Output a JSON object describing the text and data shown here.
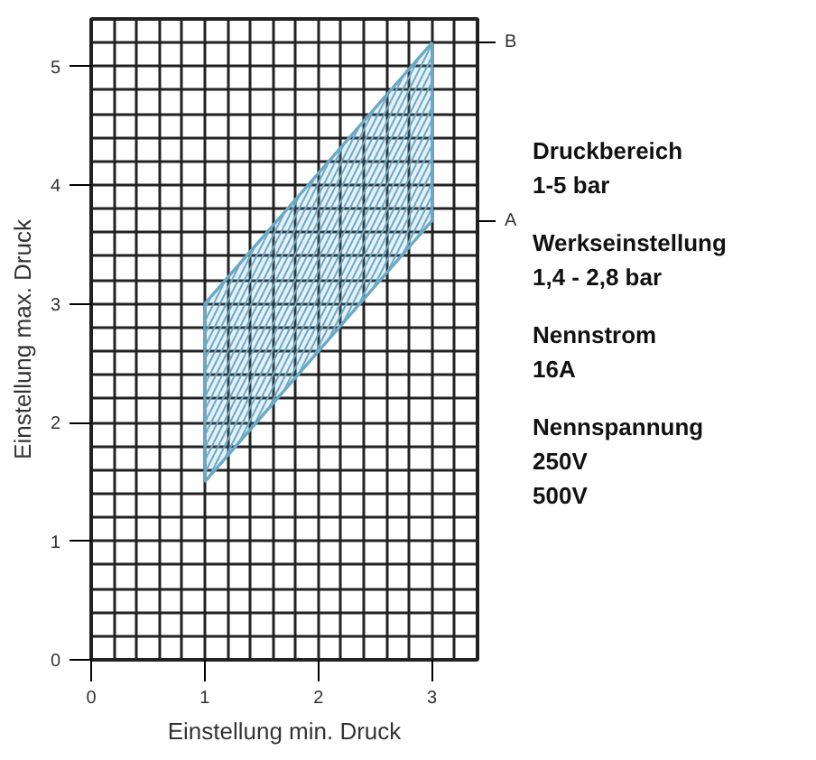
{
  "chart_data": {
    "type": "line",
    "xlabel": "Einstellung min. Druck",
    "ylabel": "Einstellung max. Druck",
    "x": [
      1,
      3
    ],
    "series": [
      {
        "name": "B",
        "color": "#6aaac8",
        "values": [
          3.0,
          5.2
        ],
        "lower": [
          1.5,
          3.7
        ],
        "upper": [
          3.0,
          5.2
        ]
      },
      {
        "name": "A",
        "color": "#6aaac8",
        "values": [
          1.5,
          3.7
        ]
      }
    ],
    "xlim": [
      0,
      3.4
    ],
    "ylim": [
      0,
      5.4
    ],
    "xticks": [
      0,
      {
        "value": 0.2,
        "label": null
      },
      {
        "value": 0.4,
        "label": null
      },
      {
        "value": 0.6,
        "label": null
      },
      {
        "value": 0.8,
        "label": null
      },
      1,
      {
        "value": 1.2,
        "label": null
      },
      {
        "value": 1.4,
        "label": null
      },
      {
        "value": 1.6,
        "label": null
      },
      {
        "value": 1.8,
        "label": null
      },
      2,
      {
        "value": 2.2,
        "label": null
      },
      {
        "value": 2.4,
        "label": null
      },
      {
        "value": 2.6,
        "label": null
      },
      {
        "value": 2.8,
        "label": null
      },
      3,
      {
        "value": 3.2,
        "label": null
      }
    ],
    "yticks": [
      0,
      {
        "value": 0.2,
        "label": null
      },
      {
        "value": 0.4,
        "label": null
      },
      {
        "value": 0.6,
        "label": null
      },
      {
        "value": 0.8,
        "label": null
      },
      1,
      {
        "value": 1.2,
        "label": null
      },
      {
        "value": 1.4,
        "label": null
      },
      {
        "value": 1.6,
        "label": null
      },
      {
        "value": 1.8,
        "label": null
      },
      2,
      {
        "value": 2.2,
        "label": null
      },
      {
        "value": 2.4,
        "label": null
      },
      {
        "value": 2.6,
        "label": null
      },
      {
        "value": 2.8,
        "label": null
      },
      3,
      {
        "value": 3.2,
        "label": null
      },
      {
        "value": 3.4,
        "label": null
      },
      {
        "value": 3.6,
        "label": null
      },
      {
        "value": 3.8,
        "label": null
      },
      4,
      {
        "value": 4.2,
        "label": null
      },
      {
        "value": 4.4,
        "label": null
      },
      {
        "value": 4.6,
        "label": null
      },
      {
        "value": 4.8,
        "label": null
      },
      5,
      {
        "value": 5.2,
        "label": null
      }
    ],
    "grid": true,
    "line_style": "solid",
    "annotations": [
      "Druckbereich\n1-5 bar",
      "Werkseinstellung\n1,4 - 2,8 bar",
      "Nennstrom\n16A",
      "Nennspannung\n250V\n500V"
    ]
  }
}
